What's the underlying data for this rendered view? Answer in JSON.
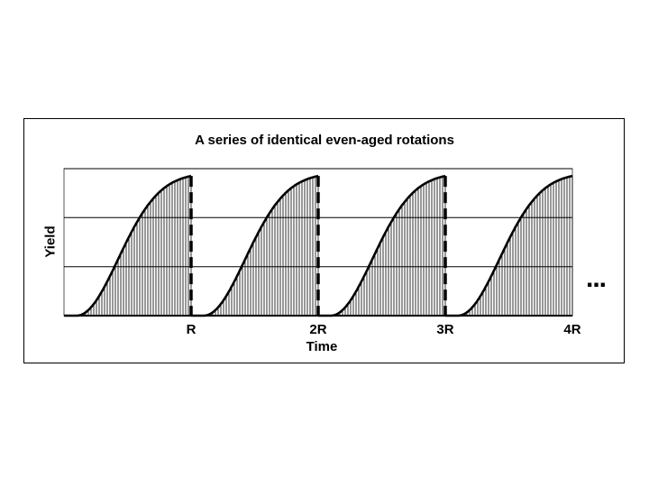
{
  "chart_data": {
    "type": "area",
    "title": "A series of identical even-aged rotations",
    "xlabel": "Time",
    "ylabel": "Yield",
    "x_ticks": [
      "R",
      "2R",
      "3R",
      "4R"
    ],
    "rotations": 4,
    "continuation": "...",
    "grid": true,
    "ylim": [
      0,
      1
    ],
    "yield_fraction_at_rotation_end": 0.95,
    "gridlines_y": [
      0.333,
      0.667,
      1.0
    ]
  },
  "colors": {
    "line": "#000000",
    "fill_hatch": "#000000",
    "background": "#ffffff"
  }
}
